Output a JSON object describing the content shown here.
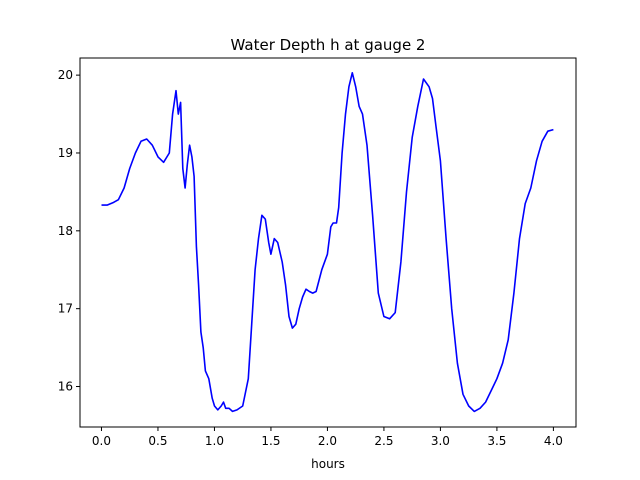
{
  "chart_data": {
    "type": "line",
    "title": "Water Depth h at gauge 2",
    "xlabel": "hours",
    "ylabel": "",
    "xlim": [
      -0.19,
      4.2
    ],
    "ylim": [
      15.48,
      20.22
    ],
    "xticks": [
      0.0,
      0.5,
      1.0,
      1.5,
      2.0,
      2.5,
      3.0,
      3.5,
      4.0
    ],
    "xtick_labels": [
      "0.0",
      "0.5",
      "1.0",
      "1.5",
      "2.0",
      "2.5",
      "3.0",
      "3.5",
      "4.0"
    ],
    "yticks": [
      16,
      17,
      18,
      19,
      20
    ],
    "ytick_labels": [
      "16",
      "17",
      "18",
      "19",
      "20"
    ],
    "grid": false,
    "series": [
      {
        "color": "#0000ff",
        "x": [
          0.0,
          0.05,
          0.1,
          0.15,
          0.2,
          0.25,
          0.3,
          0.35,
          0.4,
          0.45,
          0.5,
          0.55,
          0.6,
          0.63,
          0.66,
          0.68,
          0.7,
          0.72,
          0.74,
          0.76,
          0.78,
          0.8,
          0.82,
          0.84,
          0.86,
          0.88,
          0.9,
          0.92,
          0.95,
          0.98,
          1.0,
          1.03,
          1.06,
          1.08,
          1.1,
          1.13,
          1.16,
          1.2,
          1.25,
          1.3,
          1.33,
          1.36,
          1.39,
          1.42,
          1.45,
          1.48,
          1.5,
          1.53,
          1.56,
          1.6,
          1.63,
          1.66,
          1.69,
          1.72,
          1.75,
          1.78,
          1.81,
          1.84,
          1.87,
          1.9,
          1.95,
          2.0,
          2.03,
          2.05,
          2.08,
          2.1,
          2.13,
          2.16,
          2.19,
          2.22,
          2.25,
          2.28,
          2.31,
          2.35,
          2.4,
          2.45,
          2.5,
          2.55,
          2.6,
          2.65,
          2.7,
          2.75,
          2.8,
          2.85,
          2.9,
          2.93,
          2.96,
          3.0,
          3.05,
          3.1,
          3.15,
          3.2,
          3.25,
          3.3,
          3.35,
          3.4,
          3.45,
          3.5,
          3.55,
          3.6,
          3.65,
          3.7,
          3.75,
          3.8,
          3.85,
          3.9,
          3.95,
          4.0
        ],
        "y": [
          18.33,
          18.33,
          18.36,
          18.4,
          18.55,
          18.8,
          19.0,
          19.15,
          19.18,
          19.1,
          18.95,
          18.88,
          19.0,
          19.5,
          19.8,
          19.5,
          19.65,
          18.8,
          18.55,
          18.85,
          19.1,
          18.95,
          18.7,
          17.8,
          17.3,
          16.7,
          16.5,
          16.2,
          16.1,
          15.85,
          15.75,
          15.7,
          15.75,
          15.8,
          15.72,
          15.72,
          15.68,
          15.7,
          15.75,
          16.1,
          16.8,
          17.5,
          17.9,
          18.2,
          18.15,
          17.85,
          17.7,
          17.9,
          17.85,
          17.6,
          17.3,
          16.9,
          16.75,
          16.8,
          17.0,
          17.15,
          17.25,
          17.22,
          17.2,
          17.22,
          17.5,
          17.7,
          18.05,
          18.1,
          18.1,
          18.3,
          19.0,
          19.5,
          19.85,
          20.03,
          19.85,
          19.6,
          19.5,
          19.1,
          18.2,
          17.2,
          16.9,
          16.87,
          16.95,
          17.6,
          18.5,
          19.2,
          19.6,
          19.95,
          19.85,
          19.7,
          19.35,
          18.9,
          17.9,
          17.0,
          16.3,
          15.9,
          15.75,
          15.68,
          15.72,
          15.8,
          15.95,
          16.1,
          16.3,
          16.6,
          17.2,
          17.9,
          18.35,
          18.55,
          18.9,
          19.15,
          19.28,
          19.3
        ]
      }
    ]
  }
}
